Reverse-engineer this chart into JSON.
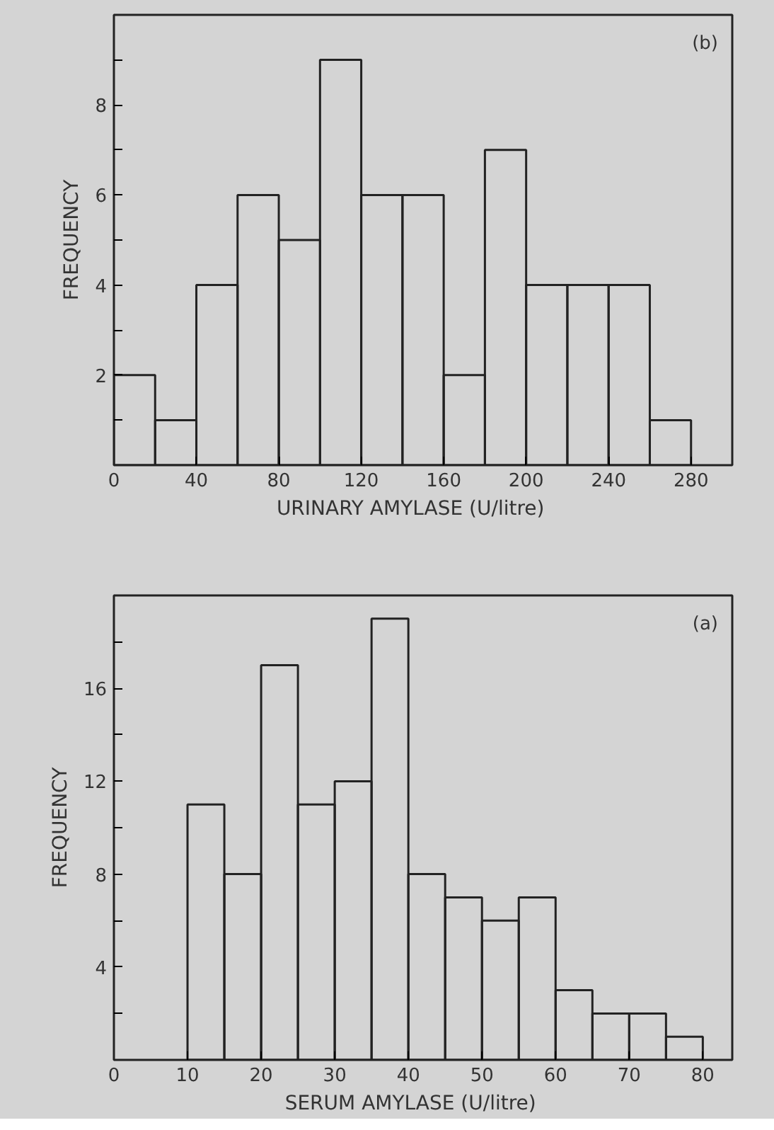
{
  "chart_data": [
    {
      "type": "histogram",
      "xlabel": "URINARY  AMYLASE    (U/litre)",
      "ylabel": "FREQUENCY",
      "annotations": [
        "(b)"
      ],
      "bins": [
        0,
        20,
        40,
        60,
        80,
        100,
        120,
        140,
        160,
        180,
        200,
        220,
        240,
        260,
        280
      ],
      "values": [
        2,
        1,
        4,
        6,
        5,
        9,
        6,
        6,
        2,
        7,
        4,
        4,
        4,
        1
      ],
      "xlim": [
        0,
        300
      ],
      "ylim": [
        0,
        10
      ],
      "xticks": [
        0,
        40,
        80,
        120,
        160,
        200,
        240,
        280
      ],
      "yticks": [
        {
          "value": 1,
          "label": null
        },
        2,
        {
          "value": 3,
          "label": null
        },
        4,
        {
          "value": 5,
          "label": null
        },
        6,
        {
          "value": 7,
          "label": null
        },
        8,
        {
          "value": 9,
          "label": null
        }
      ],
      "grid": false
    },
    {
      "type": "histogram",
      "xlabel": "SERUM  AMYLASE    (U/litre)",
      "ylabel": "FREQUENCY",
      "annotations": [
        "(a)"
      ],
      "bins": [
        10,
        15,
        20,
        25,
        30,
        35,
        40,
        45,
        50,
        55,
        60,
        65,
        70,
        75,
        80
      ],
      "values": [
        11,
        8,
        17,
        11,
        12,
        19,
        8,
        7,
        6,
        7,
        3,
        2,
        2,
        1
      ],
      "xlim": [
        0,
        84
      ],
      "ylim": [
        0,
        20
      ],
      "xticks": [
        0,
        10,
        20,
        30,
        40,
        50,
        60,
        70,
        80
      ],
      "yticks": [
        {
          "value": 2,
          "label": null
        },
        4,
        {
          "value": 6,
          "label": null
        },
        8,
        {
          "value": 10,
          "label": null
        },
        12,
        {
          "value": 14,
          "label": null
        },
        16,
        {
          "value": 18,
          "label": null
        }
      ],
      "grid": false
    }
  ]
}
